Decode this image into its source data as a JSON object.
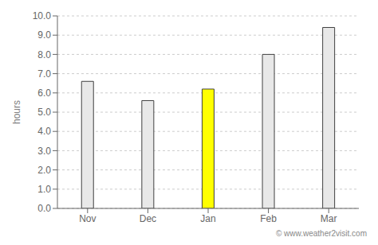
{
  "chart_data": {
    "type": "bar",
    "categories": [
      "Nov",
      "Dec",
      "Jan",
      "Feb",
      "Mar"
    ],
    "values": [
      6.6,
      5.6,
      6.2,
      8.0,
      9.4
    ],
    "colors": [
      "#e8e8e8",
      "#e8e8e8",
      "#ffff00",
      "#e8e8e8",
      "#e8e8e8"
    ],
    "ylabel": "hours",
    "ylim": [
      0,
      10.0
    ],
    "yticks": [
      {
        "value": 0,
        "label": "0.0"
      },
      {
        "value": 1,
        "label": "1.0"
      },
      {
        "value": 2,
        "label": "2.0"
      },
      {
        "value": 3,
        "label": "3.0"
      },
      {
        "value": 4,
        "label": "4.0"
      },
      {
        "value": 5,
        "label": "5.0"
      },
      {
        "value": 6,
        "label": "6.0"
      },
      {
        "value": 7,
        "label": "7.0"
      },
      {
        "value": 8,
        "label": "8.0"
      },
      {
        "value": 9,
        "label": "9.0"
      },
      {
        "value": 10,
        "label": "10.0"
      }
    ],
    "grid": true,
    "annotation": "© www.weather2visit.com"
  }
}
